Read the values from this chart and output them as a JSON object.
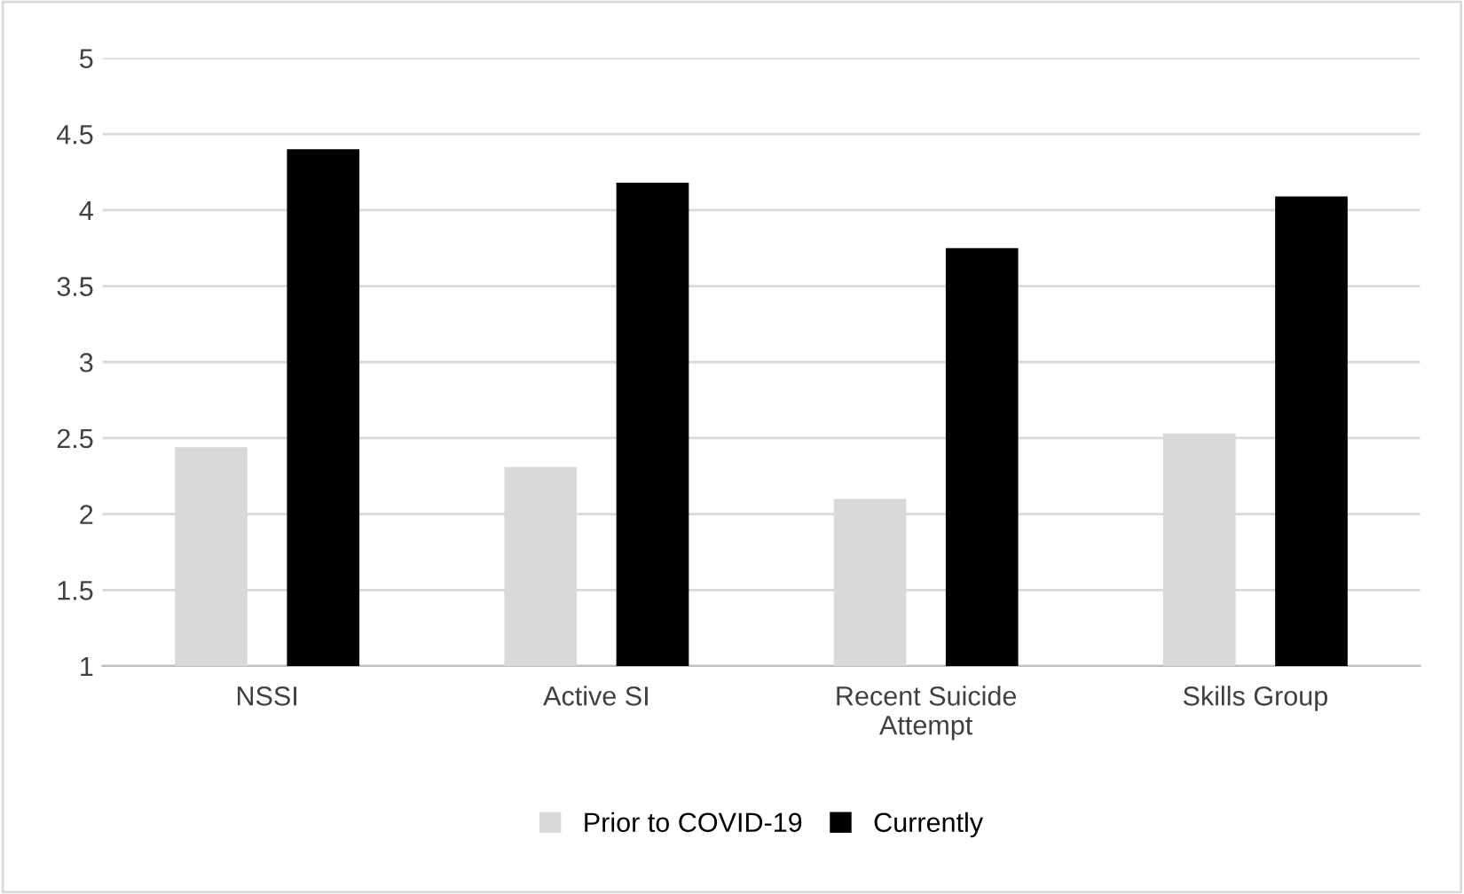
{
  "chart_data": {
    "type": "bar",
    "categories": [
      "NSSI",
      "Active SI",
      "Recent Suicide\nAttempt",
      "Skills Group"
    ],
    "series": [
      {
        "name": "Prior to COVID-19",
        "color": "#d9d9d9",
        "values": [
          2.44,
          2.31,
          2.1,
          2.53
        ]
      },
      {
        "name": "Currently",
        "color": "#000000",
        "values": [
          4.4,
          4.18,
          3.75,
          4.09
        ]
      }
    ],
    "ylim": [
      1,
      5
    ],
    "yticks": [
      1,
      1.5,
      2,
      2.5,
      3,
      3.5,
      4,
      4.5,
      5
    ],
    "grid": "y",
    "legend": "bottom"
  }
}
